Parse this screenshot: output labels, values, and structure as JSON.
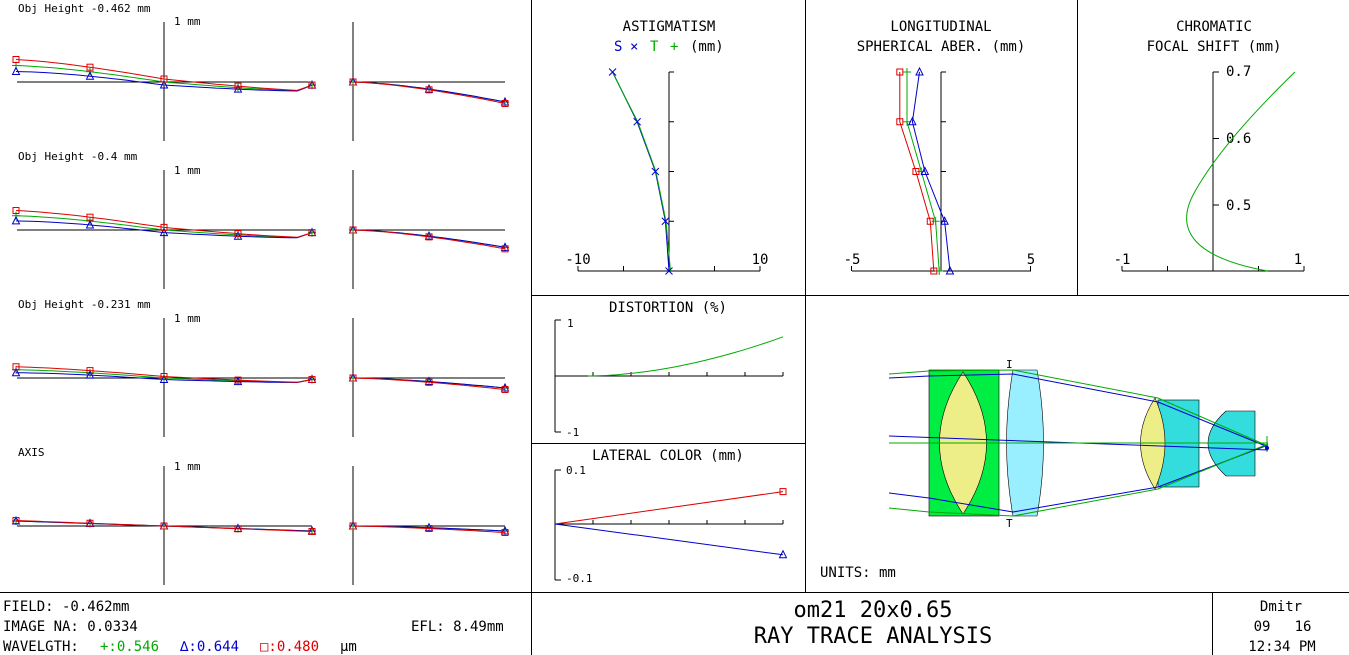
{
  "colors": {
    "green": "#00aa00",
    "blue": "#0000cc",
    "red": "#dd0000",
    "lens_green": "#00ee44",
    "lens_cyan": "#33dddd",
    "lens_yellow": "#eeee88",
    "lens_light_cyan": "#99eeff"
  },
  "ray_fans": {
    "scale_label": "1 mm",
    "rows": [
      {
        "label": "Obj Height -0.462 mm"
      },
      {
        "label": "Obj Height -0.4 mm"
      },
      {
        "label": "Obj Height -0.231 mm"
      },
      {
        "label": "AXIS"
      }
    ]
  },
  "astigmatism": {
    "title": "ASTIGMATISM",
    "legend_s": "S",
    "legend_t": "T",
    "symbols": "× +",
    "legend_unit": "(mm)",
    "tick_left": "-10",
    "tick_right": "10"
  },
  "spherical": {
    "title_line1": "LONGITUDINAL",
    "title_line2": "SPHERICAL ABER. (mm)",
    "tick_left": "-5",
    "tick_right": "5"
  },
  "chromatic": {
    "title_line1": "CHROMATIC",
    "title_line2": "FOCAL SHIFT (mm)",
    "y_ticks": [
      "0.7",
      "0.6",
      "0.5"
    ],
    "tick_left": "-1",
    "tick_right": "1"
  },
  "distortion": {
    "title": "DISTORTION (%)",
    "y_top": "1",
    "y_bottom": "-1"
  },
  "lateral_color": {
    "title": "LATERAL COLOR (mm)",
    "y_top": "0.1",
    "y_bottom": "-0.1"
  },
  "layout_view": {
    "stop_label_top": "I",
    "stop_label_bottom": "T",
    "units": "UNITS: mm"
  },
  "footer": {
    "field": "FIELD: -0.462mm",
    "image_na": "IMAGE NA: 0.0334",
    "efl": "EFL: 8.49mm",
    "wavelength_prefix": "WAVELGTH:",
    "wl1": "+:0.546",
    "wl2": "∆:0.644",
    "wl3": "□:0.480",
    "wl_unit": "µm",
    "title": "om21 20x0.65",
    "subtitle": "RAY TRACE ANALYSIS",
    "user": "Dmitr",
    "date_m": "09",
    "date_d": "16",
    "time": "12:34 PM"
  },
  "chart_data": [
    {
      "type": "line",
      "title": "ASTIGMATISM",
      "xlim": [
        -10,
        10
      ],
      "series": [
        {
          "name": "S",
          "x": [
            -6.2,
            -3.5,
            -1.5,
            -0.4,
            0
          ],
          "y": [
            1.0,
            0.75,
            0.5,
            0.25,
            0
          ]
        },
        {
          "name": "T",
          "x": [
            -6.4,
            -3.6,
            -1.6,
            -0.5,
            0
          ],
          "y": [
            1.0,
            0.75,
            0.5,
            0.25,
            0
          ]
        }
      ]
    },
    {
      "type": "line",
      "title": "LONGITUDINAL SPHERICAL ABER. (mm)",
      "xlim": [
        -5,
        5
      ],
      "series": [
        {
          "name": "0.546",
          "x": [
            -1.9,
            -1.9,
            -1.1,
            -0.3,
            -0.1
          ],
          "y": [
            1.0,
            0.75,
            0.5,
            0.25,
            0
          ]
        },
        {
          "name": "0.644",
          "x": [
            -1.2,
            -1.6,
            -0.9,
            0.2,
            0.5
          ],
          "y": [
            1.0,
            0.75,
            0.5,
            0.25,
            0
          ]
        },
        {
          "name": "0.480",
          "x": [
            -2.3,
            -2.3,
            -1.4,
            -0.6,
            -0.4
          ],
          "y": [
            1.0,
            0.75,
            0.5,
            0.25,
            0
          ]
        }
      ]
    },
    {
      "type": "line",
      "title": "CHROMATIC FOCAL SHIFT (mm)",
      "xlim": [
        -1,
        1
      ],
      "ylim": [
        0.4,
        0.7
      ],
      "series": [
        {
          "name": "focal shift",
          "x": [
            0.9,
            0.45,
            0.05,
            -0.2,
            -0.2,
            0.05,
            0.6
          ],
          "y": [
            0.7,
            0.64,
            0.58,
            0.52,
            0.46,
            0.42,
            0.4
          ]
        }
      ]
    },
    {
      "type": "line",
      "title": "DISTORTION (%)",
      "ylim": [
        -1,
        1
      ],
      "series": [
        {
          "name": "distortion",
          "x": [
            0,
            0.25,
            0.5,
            0.75,
            1.0
          ],
          "y": [
            0,
            0.03,
            0.15,
            0.35,
            0.7
          ]
        }
      ]
    },
    {
      "type": "line",
      "title": "LATERAL COLOR (mm)",
      "ylim": [
        -0.1,
        0.1
      ],
      "series": [
        {
          "name": "0.480",
          "x": [
            0,
            1
          ],
          "y": [
            0,
            0.06
          ]
        },
        {
          "name": "0.644",
          "x": [
            0,
            1
          ],
          "y": [
            0,
            -0.057
          ]
        }
      ]
    }
  ]
}
